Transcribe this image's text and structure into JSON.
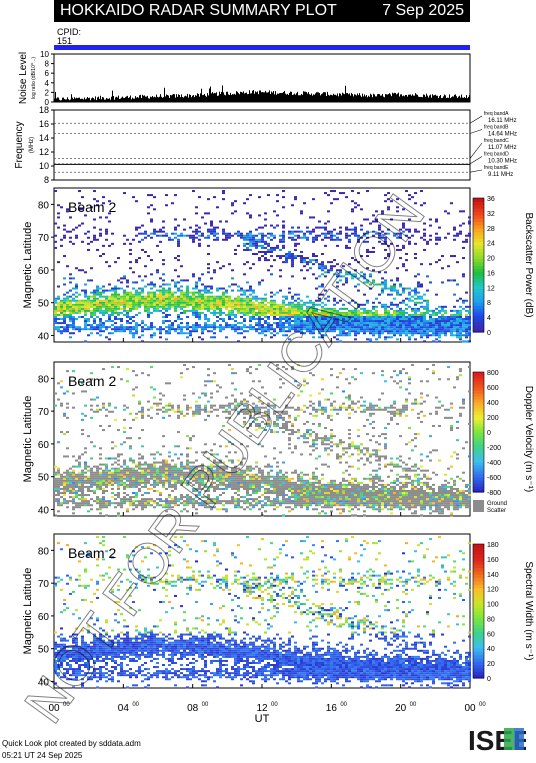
{
  "header": {
    "title": "HOKKAIDO RADAR SUMMARY PLOT",
    "date": "7 Sep 2025"
  },
  "cpid": {
    "label": "CPID:",
    "value": "151"
  },
  "footer": {
    "line1": "Quick Look plot created by sddata.adm",
    "line2": "05:21 UT 24 Sep 2025"
  },
  "watermark": "NOT FOR PUBLICATION",
  "logo_text": "ISEE",
  "colors": {
    "accent": "#2222ee",
    "header_bg": "#000000",
    "ground_scatter": "#8c8c8c"
  },
  "chart_data": [
    {
      "type": "area",
      "ylabel": "Noise Level",
      "ylabel_sub": "log ratio (dB/10^...)",
      "yticks": [
        "0",
        "2",
        "4",
        "6",
        "8",
        "10"
      ],
      "ylim": [
        0,
        10
      ],
      "series": [
        {
          "values": [
            0.5,
            0.6,
            0.7,
            0.8,
            0.9,
            1.0,
            1.1,
            1.2,
            1.3,
            1.6,
            1.8,
            2.0,
            1.9,
            1.8,
            1.7,
            1.6,
            1.4,
            1.3,
            1.2,
            1.5,
            1.4,
            1.2,
            1.1,
            1.0
          ]
        }
      ]
    },
    {
      "type": "line",
      "ylabel": "Frequency",
      "ylabel_sub": "(MHz)",
      "yticks": [
        "8",
        "10",
        "12",
        "14",
        "16",
        "18"
      ],
      "ylim": [
        8,
        18
      ],
      "bands": [
        {
          "label": "freq bandA",
          "value": "16.11 MHz"
        },
        {
          "label": "freq bandB",
          "value": "14.64 MHz"
        },
        {
          "label": "freq bandC",
          "value": "11.07 MHz"
        },
        {
          "label": "freq bandD",
          "value": "10.30 MHz"
        },
        {
          "label": "freq bandE",
          "value": "9.11 MHz"
        }
      ],
      "freq_lines": [
        16.11,
        14.64,
        11.07,
        10.3,
        9.11
      ]
    },
    {
      "type": "heatmap",
      "beam": "Beam 2",
      "ylabel": "Magnetic Latitude",
      "yticks": [
        "40",
        "50",
        "60",
        "70",
        "80"
      ],
      "ylim": [
        38,
        85
      ],
      "colorbar_label": "Backscatter Power (dB)",
      "colorbar_ticks": [
        "0",
        "4",
        "8",
        "12",
        "16",
        "20",
        "24",
        "28",
        "32",
        "36"
      ]
    },
    {
      "type": "heatmap",
      "beam": "Beam 2",
      "ylabel": "Magnetic Latitude",
      "yticks": [
        "40",
        "50",
        "60",
        "70",
        "80"
      ],
      "ylim": [
        38,
        85
      ],
      "colorbar_label": "Doppler Velocity (m s⁻¹)",
      "colorbar_ticks": [
        "-800",
        "-600",
        "-400",
        "-200",
        "0",
        "200",
        "400",
        "600",
        "800"
      ],
      "ground_label": [
        "Ground",
        "Scatter"
      ]
    },
    {
      "type": "heatmap",
      "beam": "Beam 2",
      "ylabel": "Magnetic Latitude",
      "yticks": [
        "40",
        "50",
        "60",
        "70",
        "80"
      ],
      "ylim": [
        38,
        85
      ],
      "colorbar_label": "Spectral Width (m s⁻¹)",
      "colorbar_ticks": [
        "0",
        "20",
        "40",
        "60",
        "80",
        "100",
        "120",
        "140",
        "160",
        "180"
      ]
    }
  ],
  "xaxis": {
    "label": "UT",
    "ticks": [
      "00",
      "04",
      "08",
      "12",
      "16",
      "20",
      "00"
    ],
    "tick_sup": "00"
  }
}
